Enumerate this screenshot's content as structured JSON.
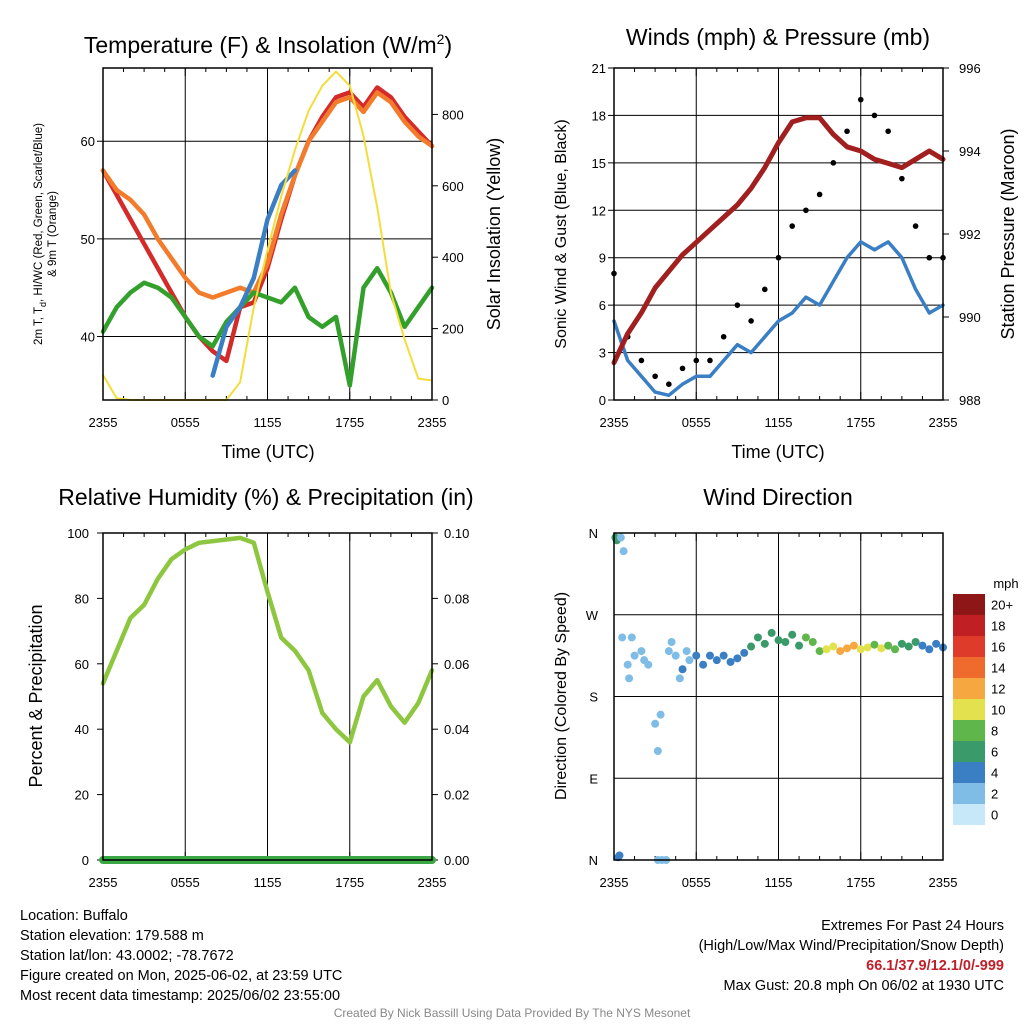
{
  "colors": {
    "red": "#d42a2a",
    "orange": "#f27c2c",
    "green": "#33a02c",
    "blue": "#3a7fc4",
    "yellow": "#f4dd3a",
    "maroon": "#a11f1f",
    "black": "#000000",
    "rh_green": "#8dc63f",
    "precip_green": "#3aa845"
  },
  "time_ticks": [
    "2355",
    "0555",
    "1155",
    "1755",
    "2355"
  ],
  "chart_data": [
    {
      "type": "line",
      "title_main": "Temperature (F) & Insolation (W/m",
      "title_sup": "2",
      "title_end": ")",
      "xlabel": "Time (UTC)",
      "ylabel_left_line1": "2m T, T",
      "ylabel_left_sub": "d",
      "ylabel_left_line1_end": ", HI/WC (Red, Green, Scarlet/Blue)",
      "ylabel_left_line2": "& 9m T (Orange)",
      "ylabel_right": "Solar Insolation (Yellow)",
      "ylim": [
        33.5,
        67.5
      ],
      "y_ticks": [
        40,
        50,
        60
      ],
      "y2lim": [
        0,
        930
      ],
      "y2_ticks": [
        0,
        200,
        400,
        600,
        800
      ],
      "x_hours": [
        0,
        1,
        2,
        3,
        4,
        5,
        6,
        7,
        8,
        9,
        10,
        11,
        12,
        13,
        14,
        15,
        16,
        17,
        18,
        19,
        20,
        21,
        22,
        23,
        24
      ],
      "series": [
        {
          "name": "2m T",
          "color": "red",
          "values": [
            57,
            54.5,
            52,
            49.5,
            47,
            44.5,
            42,
            40,
            38.5,
            37.5,
            43,
            43.5,
            47,
            52,
            56.5,
            60,
            62.5,
            64.5,
            65,
            63.5,
            65.5,
            64.5,
            62.5,
            61,
            59.5
          ]
        },
        {
          "name": "9m T",
          "color": "orange",
          "values": [
            57,
            55,
            54,
            52.5,
            50,
            48,
            46,
            44.5,
            44,
            44.5,
            45,
            44.5,
            47.5,
            52.5,
            56.5,
            60,
            62,
            64,
            64.5,
            63,
            65,
            64,
            62,
            60.5,
            59.5
          ]
        },
        {
          "name": "Td",
          "color": "green",
          "values": [
            40.5,
            43,
            44.5,
            45.5,
            45,
            44,
            42,
            40,
            39,
            41.5,
            43,
            44.5,
            44,
            43.5,
            45,
            42,
            41,
            42,
            35,
            45,
            47,
            44.5,
            41,
            43,
            45
          ]
        },
        {
          "name": "HI/WC",
          "color": "blue",
          "values": [
            null,
            null,
            null,
            null,
            null,
            null,
            null,
            null,
            36,
            41,
            43,
            46,
            52,
            55.5,
            57,
            null,
            null,
            null,
            null,
            null,
            null,
            null,
            null,
            null,
            null
          ]
        },
        {
          "name": "Solar Insolation",
          "color": "yellow",
          "axis": "right",
          "values": [
            70,
            5,
            0,
            0,
            0,
            0,
            0,
            0,
            0,
            0,
            50,
            260,
            420,
            570,
            700,
            810,
            880,
            920,
            880,
            740,
            540,
            300,
            170,
            60,
            55
          ]
        }
      ]
    },
    {
      "type": "line",
      "title": "Winds (mph) & Pressure (mb)",
      "xlabel": "Time (UTC)",
      "ylabel_left": "Sonic Wind & Gust (Blue, Black)",
      "ylabel_right": "Station Pressure (Maroon)",
      "ylim": [
        0,
        21
      ],
      "y_ticks": [
        0,
        3,
        6,
        9,
        12,
        15,
        18,
        21
      ],
      "y2lim": [
        988,
        996
      ],
      "y2_ticks": [
        988,
        990,
        992,
        994,
        996
      ],
      "x_hours": [
        0,
        1,
        2,
        3,
        4,
        5,
        6,
        7,
        8,
        9,
        10,
        11,
        12,
        13,
        14,
        15,
        16,
        17,
        18,
        19,
        20,
        21,
        22,
        23,
        24
      ],
      "series": [
        {
          "name": "Sonic Wind",
          "color": "blue",
          "values": [
            5,
            2.5,
            1.5,
            0.5,
            0.3,
            1,
            1.5,
            1.5,
            2.5,
            3.5,
            3,
            4,
            5,
            5.5,
            6.5,
            6,
            7.5,
            9,
            10,
            9.5,
            10,
            9,
            7,
            5.5,
            6
          ]
        },
        {
          "name": "Gust",
          "color": "black",
          "values": [
            8,
            4,
            2.5,
            1.5,
            1,
            2,
            2.5,
            2.5,
            4,
            6,
            5,
            7,
            9,
            11,
            12,
            13,
            15,
            17,
            19,
            18,
            17,
            14,
            11,
            9,
            9
          ]
        },
        {
          "name": "Station Pressure",
          "color": "maroon",
          "axis": "right",
          "values": [
            988.9,
            989.6,
            990.1,
            990.7,
            991.1,
            991.5,
            991.8,
            992.1,
            992.4,
            992.7,
            993.1,
            993.6,
            994.2,
            994.7,
            994.8,
            994.8,
            994.4,
            994.1,
            994.0,
            993.8,
            993.7,
            993.6,
            993.8,
            994.0,
            993.8
          ]
        }
      ]
    },
    {
      "type": "line",
      "title": "Relative Humidity (%) & Precipitation (in)",
      "ylabel_left": "Percent & Precipitation",
      "ylim": [
        0,
        100
      ],
      "y_ticks": [
        0,
        20,
        40,
        60,
        80,
        100
      ],
      "y2lim": [
        0,
        0.1
      ],
      "y2_ticks": [
        "0.00",
        "0.02",
        "0.04",
        "0.06",
        "0.08",
        "0.10"
      ],
      "x_hours": [
        0,
        1,
        2,
        3,
        4,
        5,
        6,
        7,
        8,
        9,
        10,
        11,
        12,
        13,
        14,
        15,
        16,
        17,
        18,
        19,
        20,
        21,
        22,
        23,
        24
      ],
      "series": [
        {
          "name": "Relative Humidity",
          "color": "rh_green",
          "values": [
            54,
            64,
            74,
            78,
            86,
            92,
            95,
            97,
            97.5,
            98,
            98.5,
            97,
            82,
            68,
            64,
            58,
            45,
            40,
            36,
            50,
            55,
            47,
            42,
            48,
            58
          ]
        },
        {
          "name": "Precipitation",
          "color": "precip_green",
          "axis": "right",
          "values": [
            0,
            0,
            0,
            0,
            0,
            0,
            0,
            0,
            0,
            0,
            0,
            0,
            0,
            0,
            0,
            0,
            0,
            0,
            0,
            0,
            0,
            0,
            0,
            0,
            0
          ]
        }
      ]
    },
    {
      "type": "scatter",
      "title": "Wind Direction",
      "ylabel_left": "Direction (Colored By Speed)",
      "y_ticks": [
        "N",
        "E",
        "S",
        "W",
        "N"
      ],
      "ylim": [
        0,
        360
      ],
      "legend_title": "mph",
      "legend_labels": [
        "0",
        "2",
        "4",
        "6",
        "8",
        "10",
        "12",
        "14",
        "16",
        "18",
        "20+"
      ],
      "legend_colors": [
        "#c6e8f8",
        "#7fbde6",
        "#3a7fc4",
        "#3a9a6a",
        "#5fb64a",
        "#e3e24e",
        "#f7a740",
        "#ee6a2d",
        "#df3b2b",
        "#c01f24",
        "#8e1616"
      ],
      "points": [
        {
          "hour": 0.1,
          "dir": 355,
          "spd": 6
        },
        {
          "hour": 0.2,
          "dir": 352,
          "spd": 5
        },
        {
          "hour": 0.3,
          "dir": 3,
          "spd": 4
        },
        {
          "hour": 0.4,
          "dir": 5,
          "spd": 4
        },
        {
          "hour": 0.5,
          "dir": 355,
          "spd": 1
        },
        {
          "hour": 0.7,
          "dir": 340,
          "spd": 1
        },
        {
          "hour": 0.6,
          "dir": 245,
          "spd": 1
        },
        {
          "hour": 1.0,
          "dir": 215,
          "spd": 2
        },
        {
          "hour": 1.1,
          "dir": 200,
          "spd": 1
        },
        {
          "hour": 1.3,
          "dir": 245,
          "spd": 1
        },
        {
          "hour": 1.5,
          "dir": 225,
          "spd": 1
        },
        {
          "hour": 2.0,
          "dir": 230,
          "spd": 2
        },
        {
          "hour": 2.2,
          "dir": 220,
          "spd": 1
        },
        {
          "hour": 2.5,
          "dir": 215,
          "spd": 1
        },
        {
          "hour": 3.0,
          "dir": 150,
          "spd": 1
        },
        {
          "hour": 3.2,
          "dir": 120,
          "spd": 1
        },
        {
          "hour": 3.4,
          "dir": 160,
          "spd": 1
        },
        {
          "hour": 3.2,
          "dir": 0,
          "spd": 1
        },
        {
          "hour": 3.5,
          "dir": 0,
          "spd": 1
        },
        {
          "hour": 3.8,
          "dir": 0,
          "spd": 1
        },
        {
          "hour": 4.0,
          "dir": 230,
          "spd": 2
        },
        {
          "hour": 4.2,
          "dir": 240,
          "spd": 2
        },
        {
          "hour": 4.5,
          "dir": 225,
          "spd": 1
        },
        {
          "hour": 4.8,
          "dir": 200,
          "spd": 2
        },
        {
          "hour": 5.0,
          "dir": 210,
          "spd": 3
        },
        {
          "hour": 5.3,
          "dir": 230,
          "spd": 2
        },
        {
          "hour": 5.5,
          "dir": 220,
          "spd": 1
        },
        {
          "hour": 6.0,
          "dir": 225,
          "spd": 3
        },
        {
          "hour": 6.5,
          "dir": 215,
          "spd": 3
        },
        {
          "hour": 7.0,
          "dir": 225,
          "spd": 3
        },
        {
          "hour": 7.5,
          "dir": 220,
          "spd": 4
        },
        {
          "hour": 8.0,
          "dir": 225,
          "spd": 4
        },
        {
          "hour": 8.5,
          "dir": 218,
          "spd": 3
        },
        {
          "hour": 9.0,
          "dir": 222,
          "spd": 4
        },
        {
          "hour": 9.5,
          "dir": 228,
          "spd": 4
        },
        {
          "hour": 10.0,
          "dir": 235,
          "spd": 5
        },
        {
          "hour": 10.5,
          "dir": 245,
          "spd": 5
        },
        {
          "hour": 11.0,
          "dir": 238,
          "spd": 5
        },
        {
          "hour": 11.5,
          "dir": 250,
          "spd": 6
        },
        {
          "hour": 12.0,
          "dir": 242,
          "spd": 5
        },
        {
          "hour": 12.5,
          "dir": 240,
          "spd": 6
        },
        {
          "hour": 13.0,
          "dir": 248,
          "spd": 6
        },
        {
          "hour": 13.5,
          "dir": 236,
          "spd": 6
        },
        {
          "hour": 14.0,
          "dir": 245,
          "spd": 7
        },
        {
          "hour": 14.5,
          "dir": 240,
          "spd": 7
        },
        {
          "hour": 15.0,
          "dir": 230,
          "spd": 8
        },
        {
          "hour": 15.5,
          "dir": 232,
          "spd": 9
        },
        {
          "hour": 16.0,
          "dir": 235,
          "spd": 10
        },
        {
          "hour": 16.5,
          "dir": 230,
          "spd": 11
        },
        {
          "hour": 17.0,
          "dir": 233,
          "spd": 12
        },
        {
          "hour": 17.5,
          "dir": 236,
          "spd": 11
        },
        {
          "hour": 18.0,
          "dir": 232,
          "spd": 10
        },
        {
          "hour": 18.5,
          "dir": 234,
          "spd": 9
        },
        {
          "hour": 19.0,
          "dir": 237,
          "spd": 8
        },
        {
          "hour": 19.5,
          "dir": 233,
          "spd": 9
        },
        {
          "hour": 20.0,
          "dir": 236,
          "spd": 8
        },
        {
          "hour": 20.5,
          "dir": 232,
          "spd": 7
        },
        {
          "hour": 21.0,
          "dir": 238,
          "spd": 6
        },
        {
          "hour": 21.5,
          "dir": 235,
          "spd": 5
        },
        {
          "hour": 22.0,
          "dir": 240,
          "spd": 5
        },
        {
          "hour": 22.5,
          "dir": 236,
          "spd": 4
        },
        {
          "hour": 23.0,
          "dir": 232,
          "spd": 4
        },
        {
          "hour": 23.5,
          "dir": 238,
          "spd": 4
        },
        {
          "hour": 24.0,
          "dir": 234,
          "spd": 4
        }
      ]
    }
  ],
  "info_left": [
    "Location: Buffalo",
    "Station elevation: 179.588 m",
    "Station lat/lon: 43.0002; -78.7672",
    "Figure created on Mon, 2025-06-02, at 23:59 UTC",
    "Most recent data timestamp: 2025/06/02 23:55:00"
  ],
  "info_right": {
    "line1": "Extremes For Past 24 Hours",
    "line2": "(High/Low/Max Wind/Precipitation/Snow Depth)",
    "extremes": "66.1/37.9/12.1/0/-999",
    "gust": "Max Gust: 20.8 mph On 06/02 at 1930 UTC"
  },
  "credit": "Created By Nick Bassill Using Data Provided By The NYS Mesonet"
}
